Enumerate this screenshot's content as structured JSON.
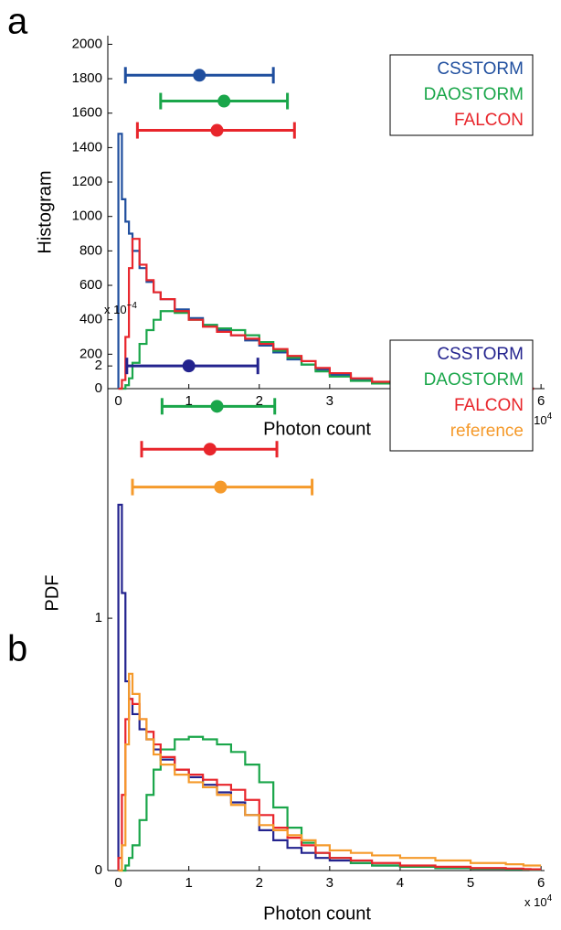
{
  "chart_data": [
    {
      "type": "histogram",
      "panel": "a",
      "xlabel": "Photon count",
      "ylabel": "Histogram",
      "x_multiplier": {
        "base": "x 10",
        "exponent": "4"
      },
      "xlim": [
        -0.15,
        6.05
      ],
      "xticks": [
        0,
        1,
        2,
        3,
        4,
        5,
        6
      ],
      "ylim": [
        0,
        2050
      ],
      "yticks": [
        0,
        200,
        400,
        600,
        800,
        1000,
        1200,
        1400,
        1600,
        1800,
        2000
      ],
      "legend": "upper right",
      "bins": [
        0,
        0.05,
        0.1,
        0.15,
        0.2,
        0.3,
        0.4,
        0.5,
        0.6,
        0.8,
        1.0,
        1.2,
        1.4,
        1.6,
        1.8,
        2.0,
        2.2,
        2.4,
        2.6,
        2.8,
        3.0,
        3.3,
        3.6,
        4.0,
        4.5,
        5.0,
        5.5,
        5.75,
        5.85,
        5.9
      ],
      "series": [
        {
          "name": "CSSTORM",
          "color": "#1f4e9e",
          "values": [
            1480,
            1100,
            970,
            900,
            800,
            700,
            620,
            560,
            520,
            460,
            410,
            370,
            340,
            310,
            280,
            250,
            210,
            170,
            140,
            110,
            80,
            55,
            35,
            20,
            10,
            5,
            3,
            60,
            0
          ],
          "mean": 1.15,
          "xerr_low": 0.1,
          "xerr_high": 2.2,
          "bar_y": 1820
        },
        {
          "name": "DAOSTORM",
          "color": "#1aa64a",
          "values": [
            0,
            0,
            20,
            60,
            150,
            260,
            340,
            400,
            450,
            440,
            400,
            370,
            350,
            340,
            310,
            270,
            220,
            180,
            140,
            100,
            70,
            45,
            30,
            15,
            8,
            4,
            2,
            40,
            0
          ],
          "mean": 1.5,
          "xerr_low": 0.6,
          "xerr_high": 2.4,
          "bar_y": 1670
        },
        {
          "name": "FALCON",
          "color": "#e8252b",
          "values": [
            0,
            50,
            300,
            700,
            870,
            720,
            630,
            560,
            520,
            450,
            400,
            360,
            330,
            310,
            290,
            260,
            230,
            190,
            160,
            120,
            90,
            60,
            40,
            25,
            12,
            6,
            3,
            80,
            0
          ],
          "mean": 1.4,
          "xerr_low": 0.27,
          "xerr_high": 2.5,
          "bar_y": 1500
        }
      ],
      "annotations": [
        {
          "text": "*",
          "x": 5.85,
          "y": 130
        }
      ]
    },
    {
      "type": "histogram",
      "panel": "b",
      "xlabel": "Photon count",
      "ylabel": "PDF",
      "x_multiplier": {
        "base": "x 10",
        "exponent": "4"
      },
      "y_multiplier": {
        "base": "x 10",
        "exponent": "−4"
      },
      "xlim": [
        -0.15,
        6.05
      ],
      "xticks": [
        0,
        1,
        2,
        3,
        4,
        5,
        6
      ],
      "ylim": [
        0,
        2.2
      ],
      "yticks": [
        0,
        1,
        2
      ],
      "legend": "upper right",
      "bins": [
        0,
        0.05,
        0.1,
        0.15,
        0.2,
        0.3,
        0.4,
        0.5,
        0.6,
        0.8,
        1.0,
        1.2,
        1.4,
        1.6,
        1.8,
        2.0,
        2.2,
        2.4,
        2.6,
        2.8,
        3.0,
        3.3,
        3.6,
        4.0,
        4.5,
        5.0,
        5.5,
        5.75,
        5.85,
        6.0
      ],
      "series": [
        {
          "name": "CSSTORM",
          "color": "#23238e",
          "values": [
            1.45,
            1.1,
            0.75,
            0.68,
            0.62,
            0.56,
            0.52,
            0.48,
            0.44,
            0.4,
            0.37,
            0.34,
            0.31,
            0.27,
            0.22,
            0.16,
            0.12,
            0.09,
            0.07,
            0.05,
            0.04,
            0.03,
            0.02,
            0.015,
            0.01,
            0.007,
            0.005,
            0.004,
            0.003
          ],
          "mean": 1.0,
          "xerr_low": 0.12,
          "xerr_high": 1.98,
          "bar_y": 2.0
        },
        {
          "name": "DAOSTORM",
          "color": "#1aa64a",
          "values": [
            0,
            0,
            0.02,
            0.05,
            0.1,
            0.2,
            0.3,
            0.4,
            0.48,
            0.52,
            0.53,
            0.52,
            0.5,
            0.47,
            0.42,
            0.35,
            0.25,
            0.17,
            0.11,
            0.07,
            0.05,
            0.03,
            0.02,
            0.015,
            0.01,
            0.007,
            0.005,
            0.004,
            0.003
          ],
          "mean": 1.4,
          "xerr_low": 0.62,
          "xerr_high": 2.22,
          "bar_y": 1.84
        },
        {
          "name": "FALCON",
          "color": "#e8252b",
          "values": [
            0.05,
            0.3,
            0.6,
            0.68,
            0.66,
            0.6,
            0.55,
            0.5,
            0.45,
            0.4,
            0.38,
            0.36,
            0.34,
            0.32,
            0.28,
            0.22,
            0.17,
            0.13,
            0.1,
            0.07,
            0.05,
            0.04,
            0.03,
            0.02,
            0.015,
            0.01,
            0.008,
            0.006,
            0.005
          ],
          "mean": 1.3,
          "xerr_low": 0.33,
          "xerr_high": 2.25,
          "bar_y": 1.67
        },
        {
          "name": "reference",
          "color": "#f59a2b",
          "values": [
            0,
            0.1,
            0.5,
            0.78,
            0.7,
            0.6,
            0.52,
            0.46,
            0.42,
            0.38,
            0.35,
            0.33,
            0.3,
            0.26,
            0.22,
            0.18,
            0.16,
            0.14,
            0.12,
            0.1,
            0.08,
            0.07,
            0.06,
            0.05,
            0.04,
            0.03,
            0.025,
            0.02,
            0.02
          ],
          "mean": 1.45,
          "xerr_low": 0.2,
          "xerr_high": 2.75,
          "bar_y": 1.52
        }
      ]
    }
  ]
}
